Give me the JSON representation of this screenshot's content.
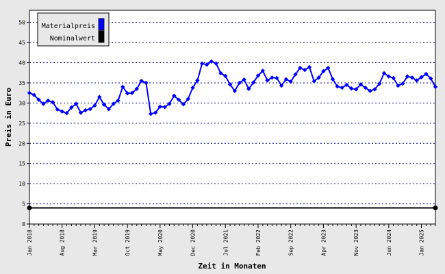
{
  "chart_data": {
    "type": "line",
    "xlabel": "Zeit in Monaten",
    "ylabel": "Preis in Euro",
    "ylim": [
      0,
      53
    ],
    "y_ticks": [
      0,
      5,
      10,
      15,
      20,
      25,
      30,
      35,
      40,
      45,
      50
    ],
    "x_ticks": [
      "Jan 2018",
      "Aug 2018",
      "Mar 2019",
      "Oct 2019",
      "May 2020",
      "Dec 2020",
      "Jul 2021",
      "Feb 2022",
      "Sep 2022",
      "Apr 2023",
      "Nov 2023",
      "Jun 2024",
      "Jan 2025"
    ],
    "x_start": "Jan 2018",
    "x_end": "Jun 2025",
    "grid": "horizontal dotted",
    "legend_position": "top-left",
    "series": [
      {
        "name": "Materialpreis",
        "color": "#0000ff",
        "marker": "diamond",
        "values": [
          32.5,
          32.0,
          30.8,
          29.8,
          30.6,
          30.2,
          28.4,
          27.9,
          27.5,
          28.9,
          29.8,
          27.6,
          28.2,
          28.5,
          29.4,
          31.5,
          29.6,
          28.5,
          29.8,
          30.6,
          34.0,
          32.4,
          32.5,
          33.5,
          35.5,
          35.0,
          27.3,
          27.6,
          29.1,
          29.0,
          29.8,
          31.8,
          30.8,
          29.7,
          31.0,
          33.8,
          35.6,
          39.8,
          39.5,
          40.3,
          39.8,
          37.4,
          36.7,
          34.6,
          33.0,
          35.0,
          35.8,
          33.5,
          35.1,
          36.8,
          38.0,
          35.6,
          36.3,
          36.2,
          34.3,
          35.9,
          35.3,
          37.1,
          38.7,
          38.2,
          38.9,
          35.4,
          36.3,
          37.9,
          38.7,
          35.9,
          34.1,
          33.8,
          34.5,
          33.6,
          33.4,
          34.6,
          33.8,
          33.0,
          33.4,
          34.8,
          37.4,
          36.6,
          36.2,
          34.3,
          34.8,
          36.6,
          36.3,
          35.6,
          36.4,
          37.2,
          36.1,
          34.0
        ]
      },
      {
        "name": "Nominalwert",
        "color": "#000000",
        "marker": "diamond-endpoints",
        "values": [
          4.0,
          4.0
        ]
      }
    ]
  }
}
